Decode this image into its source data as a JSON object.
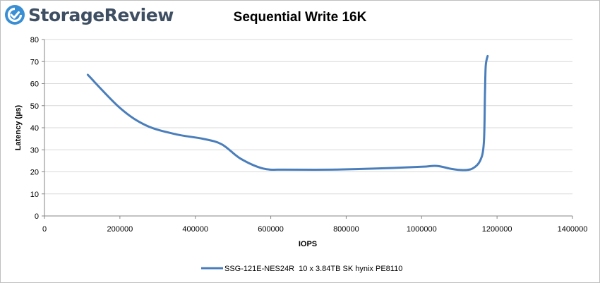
{
  "logo": {
    "text": "StorageReview",
    "accent_color": "#3a8fd4"
  },
  "chart_data": {
    "type": "line",
    "title": "Sequential Write 16K",
    "xlabel": "IOPS",
    "ylabel": "Latency (µs)",
    "xlim": [
      0,
      1400000
    ],
    "ylim": [
      0,
      80
    ],
    "xticks": [
      0,
      200000,
      400000,
      600000,
      800000,
      1000000,
      1200000,
      1400000
    ],
    "yticks": [
      0,
      10,
      20,
      30,
      40,
      50,
      60,
      70,
      80
    ],
    "grid": "horizontal",
    "legend_position": "bottom",
    "series": [
      {
        "name": "SSG-121E-NES24R  10 x 3.84TB SK hynix PE8110",
        "color": "#4a7ebb",
        "x": [
          115000,
          200000,
          270000,
          350000,
          420000,
          470000,
          520000,
          580000,
          640000,
          760000,
          880000,
          1000000,
          1040000,
          1080000,
          1110000,
          1135000,
          1155000,
          1165000,
          1168000,
          1170000,
          1175000
        ],
        "y": [
          64,
          49,
          41,
          37,
          35,
          32.5,
          26,
          21.5,
          21,
          21,
          21.5,
          22.3,
          22.7,
          21.3,
          20.8,
          21.5,
          25,
          33,
          55,
          68,
          72.5
        ]
      }
    ]
  }
}
